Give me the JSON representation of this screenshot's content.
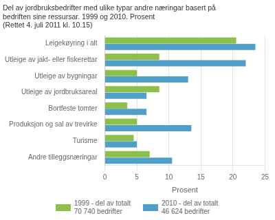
{
  "chart_data": {
    "type": "bar",
    "orientation": "horizontal",
    "title": "Del av jordbruksbedrifter med ulike typar andre næringar basert på\nbedriften sine ressursar. 1999 og 2010. Prosent\n(Rettet 4. juli 2011 kl. 10.15)",
    "categories": [
      "Leigekøyring i alt",
      "Utleige av jakt- eller fiskerettar",
      "Utleige av bygningar",
      "Utleige av jordbruksareal",
      "Bortfeste tomter",
      "Produksjon og sal av trevirke",
      "Turisme",
      "Andre tilleggsnæringar"
    ],
    "series": [
      {
        "name": "1999 - del av totalt\n70 740 bedrifter",
        "color": "#8dc04a",
        "values": [
          20.5,
          8.5,
          5.0,
          8.5,
          3.5,
          5.0,
          4.5,
          7.0
        ]
      },
      {
        "name": "2010 - del av totalt\n46 624 bedrifter",
        "color": "#4f9fc8",
        "values": [
          23.5,
          22.0,
          13.0,
          6.5,
          6.5,
          13.5,
          5.0,
          10.5
        ]
      }
    ],
    "xlabel": "Prosent",
    "xlim": [
      0,
      25
    ],
    "xticks": [
      0,
      5,
      10,
      15,
      20,
      25
    ],
    "grid": true,
    "legend": "bottom"
  }
}
